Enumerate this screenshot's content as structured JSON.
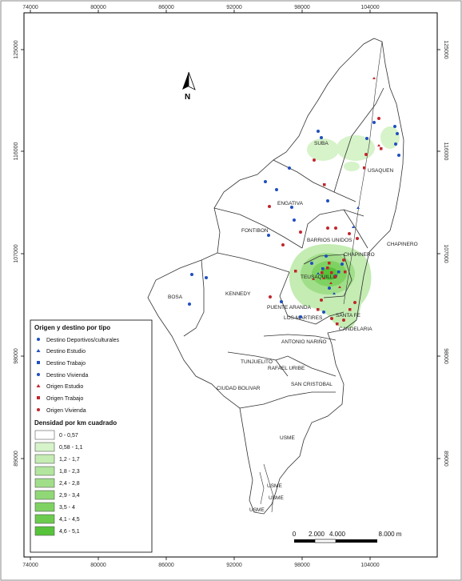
{
  "map": {
    "x_ticks": [
      "74000",
      "80000",
      "86000",
      "92000",
      "98000",
      "104000"
    ],
    "y_ticks": [
      "125000",
      "116000",
      "107000",
      "98000",
      "89000"
    ],
    "north_label": "N",
    "districts": [
      "SUBA",
      "USAQUEN",
      "ENGATIVA",
      "FONTIBON",
      "BARRIOS UNIDOS",
      "CHAPINERO",
      "CHAPINERO",
      "TEUSAQUILLO",
      "KENNEDY",
      "BOSA",
      "PUENTE ARANDA",
      "LOS MARTIRES",
      "SANTA FE",
      "CANDELARIA",
      "ANTONIO NARIÑO",
      "TUNJUELITO",
      "RAFAEL URIBE",
      "CIUDAD BOLIVAR",
      "SAN CRISTOBAL",
      "USME",
      "USME",
      "USME",
      "USME"
    ],
    "points_legend": {
      "title": "Origen y destino por tipo",
      "items": [
        {
          "label": "Destino Deportivos/culturales",
          "symbol": "circle",
          "color": "#1f4fbf"
        },
        {
          "label": "Destino Estudio",
          "symbol": "triangle",
          "color": "#1f4fbf"
        },
        {
          "label": "Destino Trabajo",
          "symbol": "square",
          "color": "#1f4fbf"
        },
        {
          "label": "Destino Vivienda",
          "symbol": "circle",
          "color": "#1f4fbf"
        },
        {
          "label": "Origen Estudio",
          "symbol": "triangle",
          "color": "#c0272d"
        },
        {
          "label": "Origen Trabajo",
          "symbol": "square",
          "color": "#c0272d"
        },
        {
          "label": "Origen Vivienda",
          "symbol": "circle",
          "color": "#c0272d"
        }
      ]
    },
    "density_legend": {
      "title": "Densidad por km cuadrado",
      "classes": [
        {
          "label": "0 - 0,57",
          "color": "#ffffff"
        },
        {
          "label": "0,58 - 1,1",
          "color": "#d6f3c9"
        },
        {
          "label": "1,2 - 1,7",
          "color": "#c4ecb3"
        },
        {
          "label": "1,8 - 2,3",
          "color": "#b2e59e"
        },
        {
          "label": "2,4 - 2,8",
          "color": "#a1de8a"
        },
        {
          "label": "2,9 - 3,4",
          "color": "#90d876"
        },
        {
          "label": "3,5 - 4",
          "color": "#7fd262"
        },
        {
          "label": "4,1 - 4,5",
          "color": "#6ccb4e"
        },
        {
          "label": "4,6 - 5,1",
          "color": "#57c33a"
        }
      ]
    },
    "scale_bar": {
      "labels": [
        "0",
        "2.000",
        "4.000",
        "8.000 m"
      ]
    }
  }
}
